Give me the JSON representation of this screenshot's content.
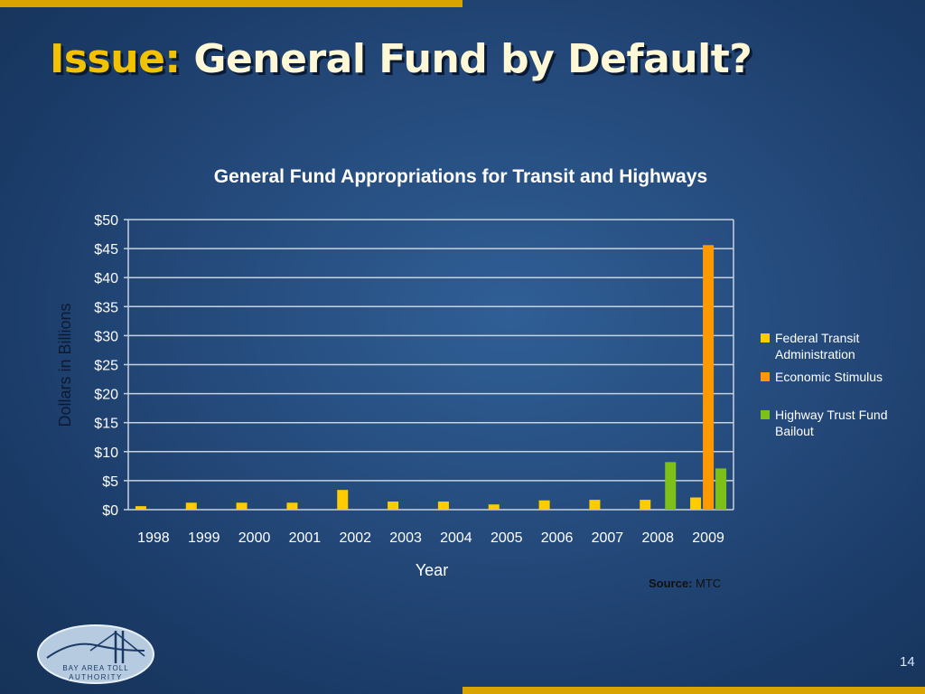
{
  "slide": {
    "title_prefix": "Issue:",
    "title_rest": "General Fund by Default?",
    "source_label": "Source:",
    "source_value": "MTC",
    "page_number": "14",
    "logo_text_line1": "BAY AREA TOLL",
    "logo_text_line2": "AUTHORITY"
  },
  "colors": {
    "accent_gold": "#d9a300",
    "title_prefix": "#f2c200",
    "series_fta": "#ffcc00",
    "series_stimulus": "#ff9900",
    "series_htf": "#7dc118"
  },
  "chart_data": {
    "type": "bar",
    "title": "General Fund Appropriations for Transit and Highways",
    "xlabel": "Year",
    "ylabel": "Dollars in Billions",
    "ylim": [
      0,
      50
    ],
    "yticks": [
      "$0",
      "$5",
      "$10",
      "$15",
      "$20",
      "$25",
      "$30",
      "$35",
      "$40",
      "$45",
      "$50"
    ],
    "grid": true,
    "legend_position": "right",
    "categories": [
      "1998",
      "1999",
      "2000",
      "2001",
      "2002",
      "2003",
      "2004",
      "2005",
      "2006",
      "2007",
      "2008",
      "2009"
    ],
    "series": [
      {
        "name": "Federal Transit Administration",
        "color": "#ffcc00",
        "values": [
          0.6,
          1.2,
          1.2,
          1.2,
          3.4,
          1.4,
          1.4,
          0.9,
          1.6,
          1.7,
          1.7,
          2.1
        ]
      },
      {
        "name": "Economic Stimulus",
        "color": "#ff9900",
        "values": [
          0,
          0,
          0,
          0,
          0,
          0,
          0,
          0,
          0,
          0,
          0,
          45.6
        ]
      },
      {
        "name": "Highway Trust Fund Bailout",
        "color": "#7dc118",
        "values": [
          0,
          0,
          0,
          0,
          0,
          0,
          0,
          0,
          0,
          0,
          8.2,
          7.1
        ]
      }
    ]
  }
}
